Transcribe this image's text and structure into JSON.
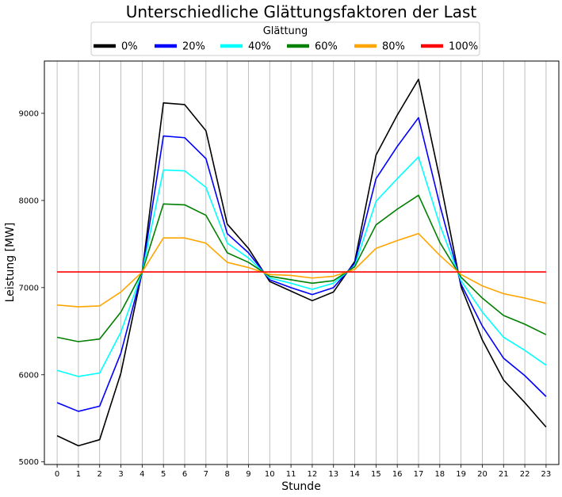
{
  "chart_data": {
    "type": "line",
    "title": "Unterschiedliche Glättungsfaktoren der Last",
    "xlabel": "Stunde",
    "ylabel": "Leistung [MW]",
    "x": [
      0,
      1,
      2,
      3,
      4,
      5,
      6,
      7,
      8,
      9,
      10,
      11,
      12,
      13,
      14,
      15,
      16,
      17,
      18,
      19,
      20,
      21,
      22,
      23
    ],
    "xlim": [
      -0.6,
      23.6
    ],
    "ylim": [
      4970,
      9600
    ],
    "yticks": [
      5000,
      6000,
      7000,
      8000,
      9000
    ],
    "grid": "vertical",
    "legend": {
      "title": "Glättung",
      "placement": "top-center",
      "columns": 6
    },
    "series": [
      {
        "name": "0%",
        "color": "#000000",
        "values": [
          5300,
          5185,
          5255,
          6020,
          7180,
          9120,
          9100,
          8800,
          7730,
          7450,
          7070,
          6960,
          6850,
          6950,
          7300,
          8520,
          8980,
          9390,
          8250,
          7010,
          6400,
          5940,
          5680,
          5400
        ]
      },
      {
        "name": "20%",
        "color": "#0000ff",
        "values": [
          5680,
          5580,
          5640,
          6250,
          7180,
          8740,
          8720,
          8480,
          7620,
          7400,
          7090,
          7000,
          6920,
          7000,
          7280,
          8250,
          8620,
          8950,
          7950,
          7040,
          6560,
          6190,
          5990,
          5750
        ]
      },
      {
        "name": "40%",
        "color": "#00ffff",
        "values": [
          6050,
          5980,
          6020,
          6490,
          7180,
          8350,
          8340,
          8150,
          7510,
          7340,
          7110,
          7050,
          6980,
          7050,
          7250,
          7990,
          8250,
          8500,
          7720,
          7080,
          6720,
          6430,
          6280,
          6110
        ]
      },
      {
        "name": "60%",
        "color": "#008000",
        "values": [
          6430,
          6380,
          6410,
          6720,
          7180,
          7960,
          7950,
          7830,
          7400,
          7290,
          7130,
          7090,
          7050,
          7080,
          7240,
          7720,
          7900,
          8060,
          7520,
          7120,
          6880,
          6680,
          6580,
          6460
        ]
      },
      {
        "name": "80%",
        "color": "#ffa500",
        "values": [
          6800,
          6780,
          6790,
          6950,
          7180,
          7570,
          7570,
          7510,
          7290,
          7230,
          7150,
          7140,
          7110,
          7130,
          7210,
          7450,
          7540,
          7620,
          7370,
          7150,
          7020,
          6930,
          6880,
          6820
        ]
      },
      {
        "name": "100%",
        "color": "#ff0000",
        "values": [
          7180,
          7180,
          7180,
          7180,
          7180,
          7180,
          7180,
          7180,
          7180,
          7180,
          7180,
          7180,
          7180,
          7180,
          7180,
          7180,
          7180,
          7180,
          7180,
          7180,
          7180,
          7180,
          7180,
          7180
        ]
      }
    ]
  }
}
